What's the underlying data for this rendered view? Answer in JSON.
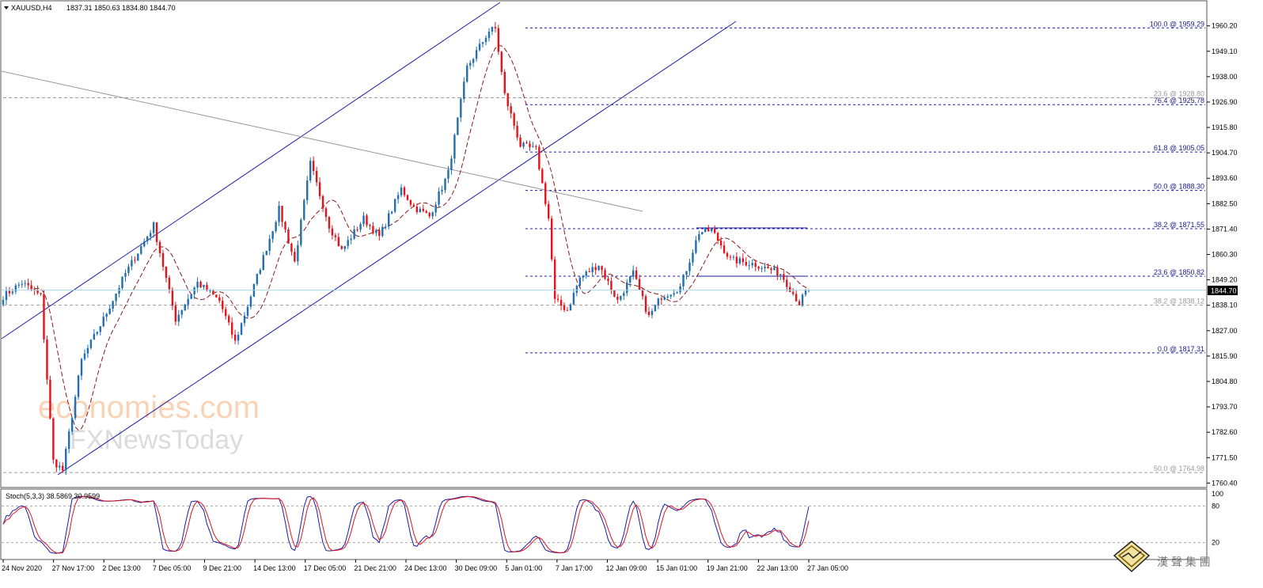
{
  "header": {
    "symbol_label": "XAUUSD,H4",
    "ohlc": "1837.31 1850.63 1834.80 1844.70"
  },
  "indicator": {
    "label": "Stoch(5,3,3) 38.5869 30.9599"
  },
  "current_price_label": "1844.70",
  "watermark": {
    "line1": "economies.com",
    "line2": "FXNewsToday",
    "corner": "漢 聲 集 團"
  },
  "colors": {
    "bull": "#1f6fb2",
    "bear": "#e1141c",
    "channel": "#1c1ca8",
    "trend_gray": "#9a9a9a",
    "ma": "#8b1a1a",
    "stoch_main": "#1c1ca8",
    "stoch_signal": "#e1141c",
    "fib_line": "#1c1ca8",
    "current_line": "#a8d8ea"
  },
  "chart_data": {
    "type": "candlestick",
    "ylim": [
      1759.5,
      1967.0
    ],
    "y_ticks": [
      "1960.20",
      "1949.10",
      "1938.00",
      "1926.90",
      "1915.80",
      "1904.70",
      "1893.60",
      "1882.50",
      "1871.40",
      "1860.30",
      "1849.20",
      "1838.10",
      "1827.00",
      "1815.90",
      "1804.80",
      "1793.70",
      "1782.60",
      "1771.50",
      "1760.40"
    ],
    "x_labels": [
      "24 Nov 2020",
      "27 Nov 17:00",
      "2 Dec 13:00",
      "7 Dec 05:00",
      "9 Dec 21:00",
      "14 Dec 13:00",
      "17 Dec 05:00",
      "21 Dec 21:00",
      "24 Dec 13:00",
      "30 Dec 09:00",
      "5 Jan 01:00",
      "7 Jan 17:00",
      "12 Jan 09:00",
      "15 Jan 01:00",
      "19 Jan 21:00",
      "22 Jan 13:00",
      "27 Jan 05:00"
    ],
    "pivots": [
      [
        0,
        1842
      ],
      [
        6,
        1848
      ],
      [
        12,
        1842
      ],
      [
        16,
        1770
      ],
      [
        19,
        1766
      ],
      [
        25,
        1814
      ],
      [
        32,
        1832
      ],
      [
        39,
        1852
      ],
      [
        48,
        1873
      ],
      [
        55,
        1832
      ],
      [
        62,
        1848
      ],
      [
        69,
        1840
      ],
      [
        74,
        1822
      ],
      [
        78,
        1838
      ],
      [
        88,
        1880
      ],
      [
        93,
        1857
      ],
      [
        98,
        1900
      ],
      [
        104,
        1873
      ],
      [
        108,
        1862
      ],
      [
        115,
        1876
      ],
      [
        120,
        1868
      ],
      [
        127,
        1889
      ],
      [
        131,
        1881
      ],
      [
        136,
        1877
      ],
      [
        142,
        1896
      ],
      [
        148,
        1942
      ],
      [
        155,
        1958
      ],
      [
        157,
        1959
      ],
      [
        160,
        1930
      ],
      [
        165,
        1908
      ],
      [
        170,
        1906
      ],
      [
        174,
        1876
      ],
      [
        176,
        1840
      ],
      [
        180,
        1836
      ],
      [
        184,
        1850
      ],
      [
        190,
        1856
      ],
      [
        196,
        1840
      ],
      [
        201,
        1852
      ],
      [
        206,
        1833
      ],
      [
        210,
        1842
      ],
      [
        216,
        1846
      ],
      [
        222,
        1870
      ],
      [
        226,
        1871
      ],
      [
        232,
        1858
      ],
      [
        240,
        1856
      ],
      [
        248,
        1852
      ],
      [
        254,
        1839
      ],
      [
        257,
        1846
      ]
    ],
    "fib_levels": [
      {
        "label": "100.0 @ 1959.29",
        "value": 1959.29,
        "style": "major"
      },
      {
        "label": "76.4 @ 1925.78",
        "value": 1925.78,
        "style": "major"
      },
      {
        "label": "61.8 @ 1905.05",
        "value": 1905.05,
        "style": "major"
      },
      {
        "label": "50.0 @ 1888.30",
        "value": 1888.3,
        "style": "major"
      },
      {
        "label": "38.2 @ 1871.55",
        "value": 1871.55,
        "style": "major"
      },
      {
        "label": "23.6 @ 1850.82",
        "value": 1850.82,
        "style": "major"
      },
      {
        "label": "0.0 @ 1817.31",
        "value": 1817.31,
        "style": "major"
      },
      {
        "label": "23.6 @ 1928.80",
        "value": 1928.8,
        "style": "minor"
      },
      {
        "label": "38.2 @ 1838.12",
        "value": 1838.12,
        "style": "minor"
      },
      {
        "label": "50.0 @ 1764.98",
        "value": 1764.98,
        "style": "minor"
      }
    ],
    "current_price": 1844.7,
    "stoch": {
      "ylim": [
        0,
        100
      ],
      "y_ticks": [
        "100",
        "80",
        "20"
      ],
      "levels": [
        80,
        20
      ]
    }
  }
}
